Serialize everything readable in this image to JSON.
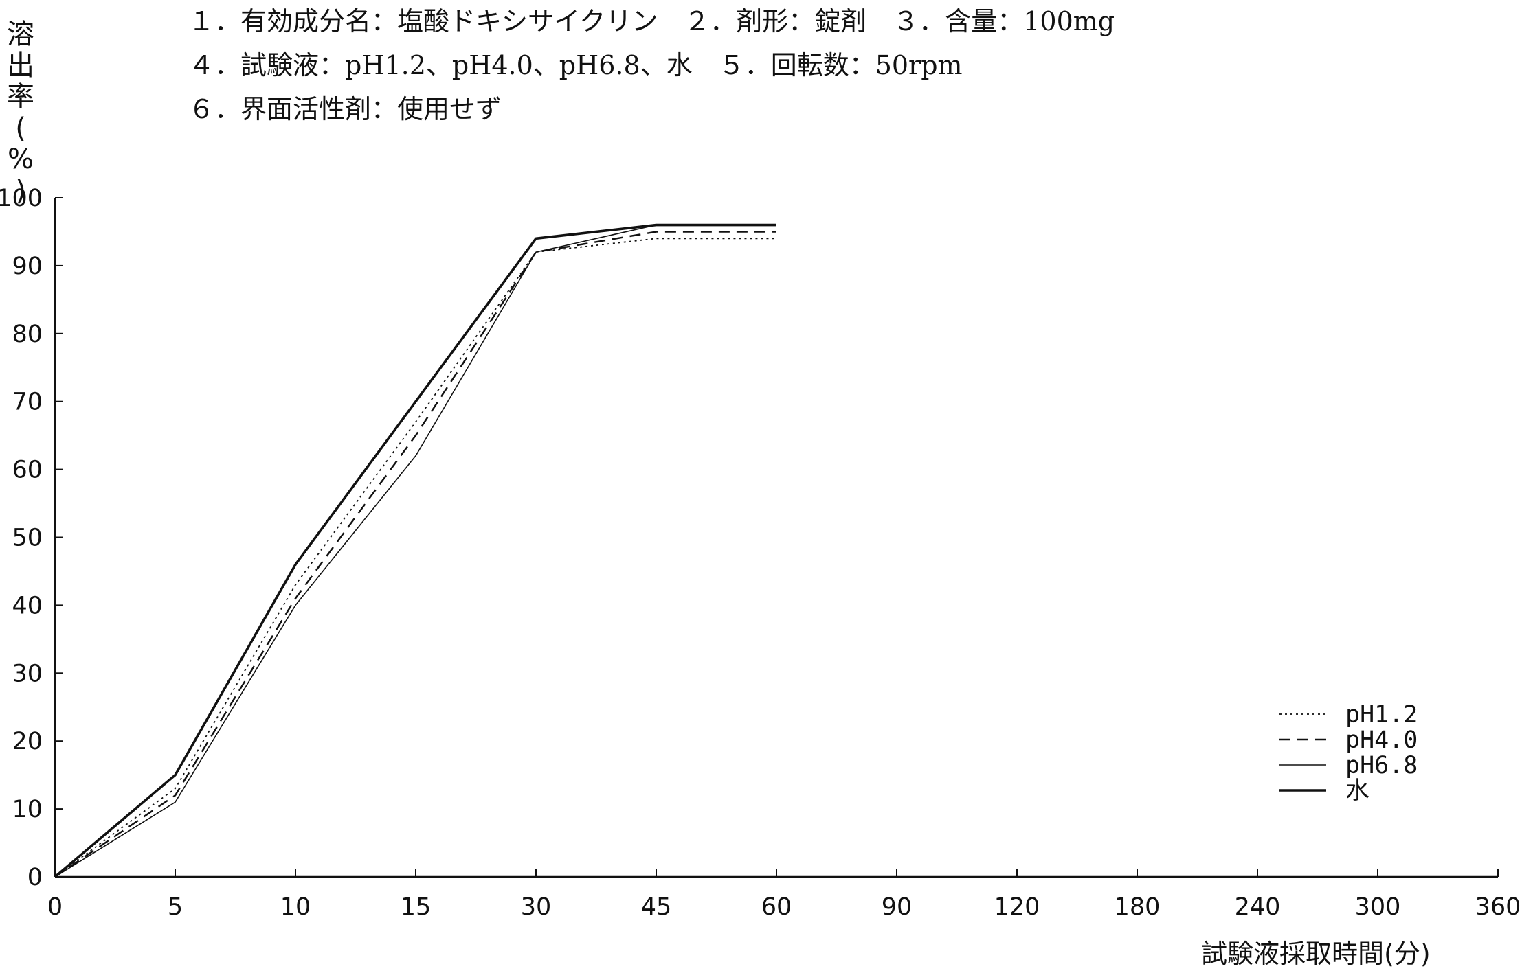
{
  "conditions": {
    "line1": "１．有効成分名：塩酸ドキシサイクリン　２．剤形：錠剤　３．含量：100mg",
    "line2": "４．試験液：pH1.2、pH4.0、pH6.8、水　５．回転数：50rpm",
    "line3": "６．界面活性剤：使用せず"
  },
  "chart_data": {
    "type": "line",
    "ylabel": "溶出率(%)",
    "ylabel_chars": [
      "溶",
      "出",
      "率",
      "(",
      "%",
      ")"
    ],
    "xlabel": "試験液採取時間(分)",
    "categories": [
      "0",
      "5",
      "10",
      "15",
      "30",
      "45",
      "60",
      "90",
      "120",
      "180",
      "240",
      "300",
      "360"
    ],
    "yticks": [
      "0",
      "10",
      "20",
      "30",
      "40",
      "50",
      "60",
      "70",
      "80",
      "90",
      "100"
    ],
    "ylim": [
      0,
      100
    ],
    "grid": false,
    "legend_position": "bottom-right",
    "series": [
      {
        "name": "pH1.2",
        "style": "dotted",
        "x": [
          0,
          5,
          10,
          15,
          30,
          45,
          60
        ],
        "values": [
          0,
          13,
          43,
          67,
          92,
          94,
          94
        ]
      },
      {
        "name": "pH4.0",
        "style": "dashed",
        "x": [
          0,
          5,
          10,
          15,
          30,
          45,
          60
        ],
        "values": [
          0,
          12,
          41,
          65,
          92,
          95,
          95
        ]
      },
      {
        "name": "pH6.8",
        "style": "thin-solid",
        "x": [
          0,
          5,
          10,
          15,
          30,
          45,
          60
        ],
        "values": [
          0,
          11,
          40,
          62,
          92,
          96,
          96
        ]
      },
      {
        "name": "水",
        "style": "thick-solid",
        "x": [
          0,
          5,
          10,
          15,
          30,
          45,
          60
        ],
        "values": [
          0,
          15,
          46,
          70,
          94,
          96,
          96
        ]
      }
    ]
  }
}
